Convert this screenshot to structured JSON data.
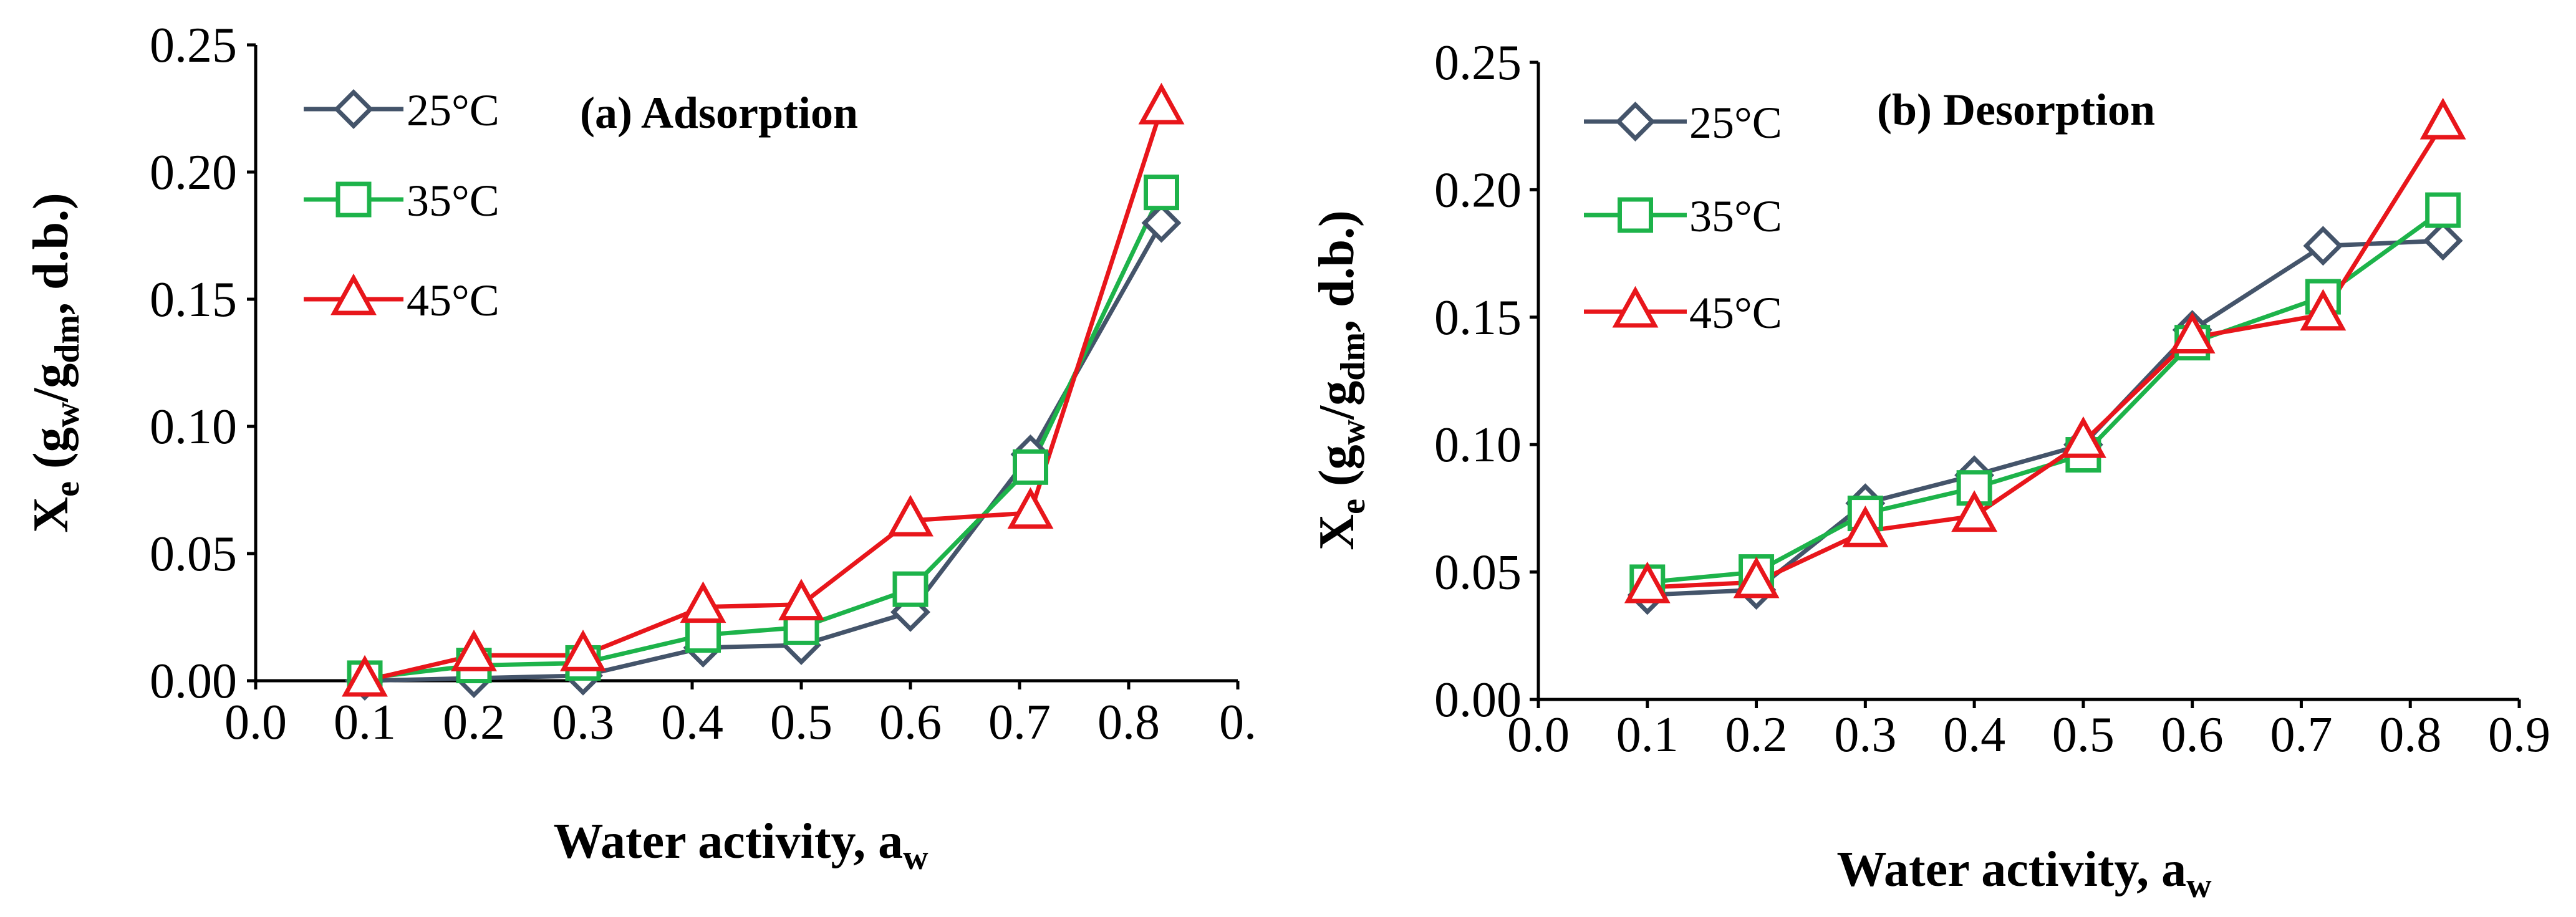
{
  "chart_data": [
    {
      "type": "line",
      "title": "(a) Adsorption",
      "xlabel": {
        "main": "Water activity, a",
        "sub": "w"
      },
      "ylabel": {
        "main": "X",
        "sub": "e",
        "mid": "  (g",
        "sub2": "w",
        "mid2": "/g",
        "sub3": "dm",
        "tail": ", d.b.)"
      },
      "xlim": [
        0.0,
        0.9
      ],
      "ylim": [
        0.0,
        0.25
      ],
      "xticks": [
        "0.0",
        "0.1",
        "0.2",
        "0.3",
        "0.4",
        "0.5",
        "0.6",
        "0.7",
        "0.8",
        "0."
      ],
      "yticks": [
        "0.00",
        "0.05",
        "0.10",
        "0.15",
        "0.20",
        "0.25"
      ],
      "grid": false,
      "legend_position": "top-left",
      "x": [
        0.1,
        0.2,
        0.3,
        0.41,
        0.5,
        0.6,
        0.71,
        0.83
      ],
      "series": [
        {
          "name": "25°C",
          "marker": "diamond",
          "color": "#44546a",
          "x": [
            0.1,
            0.2,
            0.3,
            0.41,
            0.5,
            0.6,
            0.71,
            0.83
          ],
          "values": [
            0.0,
            0.001,
            0.002,
            0.013,
            0.014,
            0.027,
            0.089,
            0.18
          ]
        },
        {
          "name": "35°C",
          "marker": "square",
          "color": "#1db34a",
          "x": [
            0.1,
            0.2,
            0.3,
            0.41,
            0.5,
            0.6,
            0.71,
            0.83
          ],
          "values": [
            0.001,
            0.006,
            0.007,
            0.018,
            0.021,
            0.036,
            0.084,
            0.192
          ]
        },
        {
          "name": "45°C",
          "marker": "triangle",
          "color": "#e8161b",
          "x": [
            0.1,
            0.2,
            0.3,
            0.41,
            0.5,
            0.6,
            0.71,
            0.83
          ],
          "values": [
            0.0,
            0.01,
            0.01,
            0.029,
            0.03,
            0.063,
            0.066,
            0.225
          ]
        }
      ]
    },
    {
      "type": "line",
      "title": "(b) Desorption",
      "xlabel": {
        "main": "Water activity, a",
        "sub": "w"
      },
      "ylabel": {
        "main": "X",
        "sub": "e",
        "mid": "  (g",
        "sub2": "w",
        "mid2": "/g",
        "sub3": "dm",
        "tail": ", d.b.)"
      },
      "xlim": [
        0.0,
        0.9
      ],
      "ylim": [
        0.0,
        0.25
      ],
      "xticks": [
        "0.0",
        "0.1",
        "0.2",
        "0.3",
        "0.4",
        "0.5",
        "0.6",
        "0.7",
        "0.8",
        "0.9"
      ],
      "yticks": [
        "0.00",
        "0.05",
        "0.10",
        "0.15",
        "0.20",
        "0.25"
      ],
      "grid": false,
      "legend_position": "top-left",
      "series": [
        {
          "name": "25°C",
          "marker": "diamond",
          "color": "#44546a",
          "x": [
            0.1,
            0.2,
            0.3,
            0.4,
            0.5,
            0.6,
            0.72,
            0.83
          ],
          "values": [
            0.041,
            0.043,
            0.077,
            0.088,
            0.1,
            0.145,
            0.178,
            0.18
          ]
        },
        {
          "name": "35°C",
          "marker": "square",
          "color": "#1db34a",
          "x": [
            0.1,
            0.2,
            0.3,
            0.4,
            0.5,
            0.6,
            0.72,
            0.83
          ],
          "values": [
            0.046,
            0.05,
            0.073,
            0.083,
            0.096,
            0.14,
            0.158,
            0.192
          ]
        },
        {
          "name": "45°C",
          "marker": "triangle",
          "color": "#e8161b",
          "x": [
            0.1,
            0.2,
            0.3,
            0.4,
            0.5,
            0.6,
            0.72,
            0.83
          ],
          "values": [
            0.044,
            0.046,
            0.066,
            0.072,
            0.101,
            0.142,
            0.151,
            0.226
          ]
        }
      ]
    }
  ]
}
